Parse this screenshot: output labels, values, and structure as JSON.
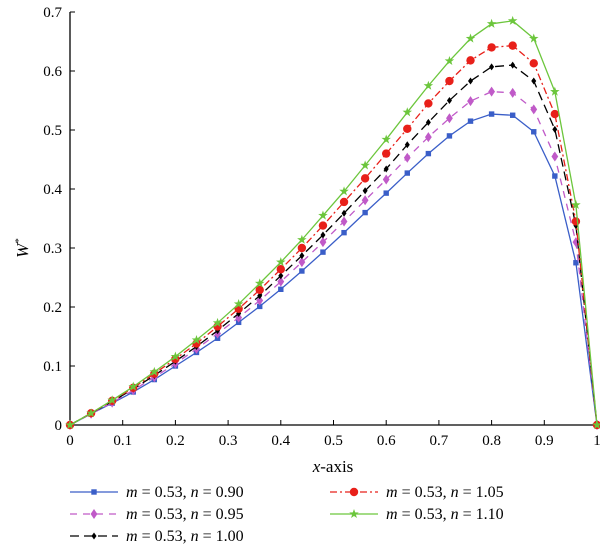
{
  "chart_data": {
    "type": "line",
    "title": "",
    "xlabel_var": "x",
    "xlabel_rest": "-axis",
    "ylabel_var": "W",
    "ylabel_sup": "*",
    "xlim": [
      0,
      1
    ],
    "ylim": [
      0,
      0.7
    ],
    "xticks": [
      "0",
      "0.1",
      "0.2",
      "0.3",
      "0.4",
      "0.5",
      "0.6",
      "0.7",
      "0.8",
      "0.9",
      "1"
    ],
    "yticks": [
      "0",
      "0.1",
      "0.2",
      "0.3",
      "0.4",
      "0.5",
      "0.6",
      "0.7"
    ],
    "grid": false,
    "legend_placement": "bottom",
    "x": [
      0,
      0.04,
      0.08,
      0.12,
      0.16,
      0.2,
      0.24,
      0.28,
      0.32,
      0.36,
      0.4,
      0.44,
      0.48,
      0.52,
      0.56,
      0.6,
      0.64,
      0.68,
      0.72,
      0.76,
      0.8,
      0.84,
      0.88,
      0.92,
      0.96,
      1.0
    ],
    "series": [
      {
        "m_label": "m",
        "m_value": " = 0.53, ",
        "n_label": "n",
        "n_value": " = 0.90",
        "color": "#3a5ec8",
        "dash": "",
        "marker": "square",
        "values": [
          0,
          0.019,
          0.037,
          0.056,
          0.077,
          0.1,
          0.123,
          0.147,
          0.174,
          0.201,
          0.23,
          0.261,
          0.293,
          0.326,
          0.36,
          0.393,
          0.427,
          0.46,
          0.49,
          0.515,
          0.527,
          0.525,
          0.497,
          0.422,
          0.275,
          0
        ]
      },
      {
        "m_label": "m",
        "m_value": " = 0.53, ",
        "n_label": "n",
        "n_value": " = 0.95",
        "color": "#c05ac8",
        "dash": "7,6",
        "marker": "diamond",
        "values": [
          0,
          0.019,
          0.038,
          0.059,
          0.081,
          0.104,
          0.129,
          0.155,
          0.182,
          0.211,
          0.243,
          0.276,
          0.31,
          0.345,
          0.381,
          0.416,
          0.453,
          0.488,
          0.52,
          0.549,
          0.565,
          0.563,
          0.535,
          0.455,
          0.31,
          0
        ]
      },
      {
        "m_label": "m",
        "m_value": " = 0.53, ",
        "n_label": "n",
        "n_value": " = 1.00",
        "color": "#000000",
        "dash": "9,5",
        "marker": "small-diamond",
        "values": [
          0,
          0.02,
          0.04,
          0.061,
          0.084,
          0.108,
          0.133,
          0.16,
          0.189,
          0.219,
          0.253,
          0.287,
          0.322,
          0.359,
          0.397,
          0.434,
          0.475,
          0.513,
          0.55,
          0.583,
          0.607,
          0.61,
          0.583,
          0.501,
          0.338,
          0
        ]
      },
      {
        "m_label": "m",
        "m_value": " = 0.53, ",
        "n_label": "n",
        "n_value": " = 1.05",
        "color": "#e8201a",
        "dash": "7,3,2,3",
        "marker": "circle",
        "values": [
          0,
          0.02,
          0.041,
          0.063,
          0.087,
          0.112,
          0.138,
          0.167,
          0.197,
          0.229,
          0.264,
          0.3,
          0.338,
          0.378,
          0.418,
          0.46,
          0.502,
          0.545,
          0.583,
          0.618,
          0.64,
          0.643,
          0.613,
          0.527,
          0.345,
          0
        ]
      },
      {
        "m_label": "m",
        "m_value": " = 0.53, ",
        "n_label": "n",
        "n_value": " = 1.10",
        "color": "#6cc63c",
        "dash": "",
        "marker": "star",
        "values": [
          0,
          0.02,
          0.042,
          0.065,
          0.09,
          0.116,
          0.144,
          0.173,
          0.205,
          0.24,
          0.276,
          0.314,
          0.355,
          0.396,
          0.44,
          0.484,
          0.53,
          0.575,
          0.617,
          0.655,
          0.68,
          0.685,
          0.655,
          0.565,
          0.373,
          0
        ]
      }
    ]
  }
}
